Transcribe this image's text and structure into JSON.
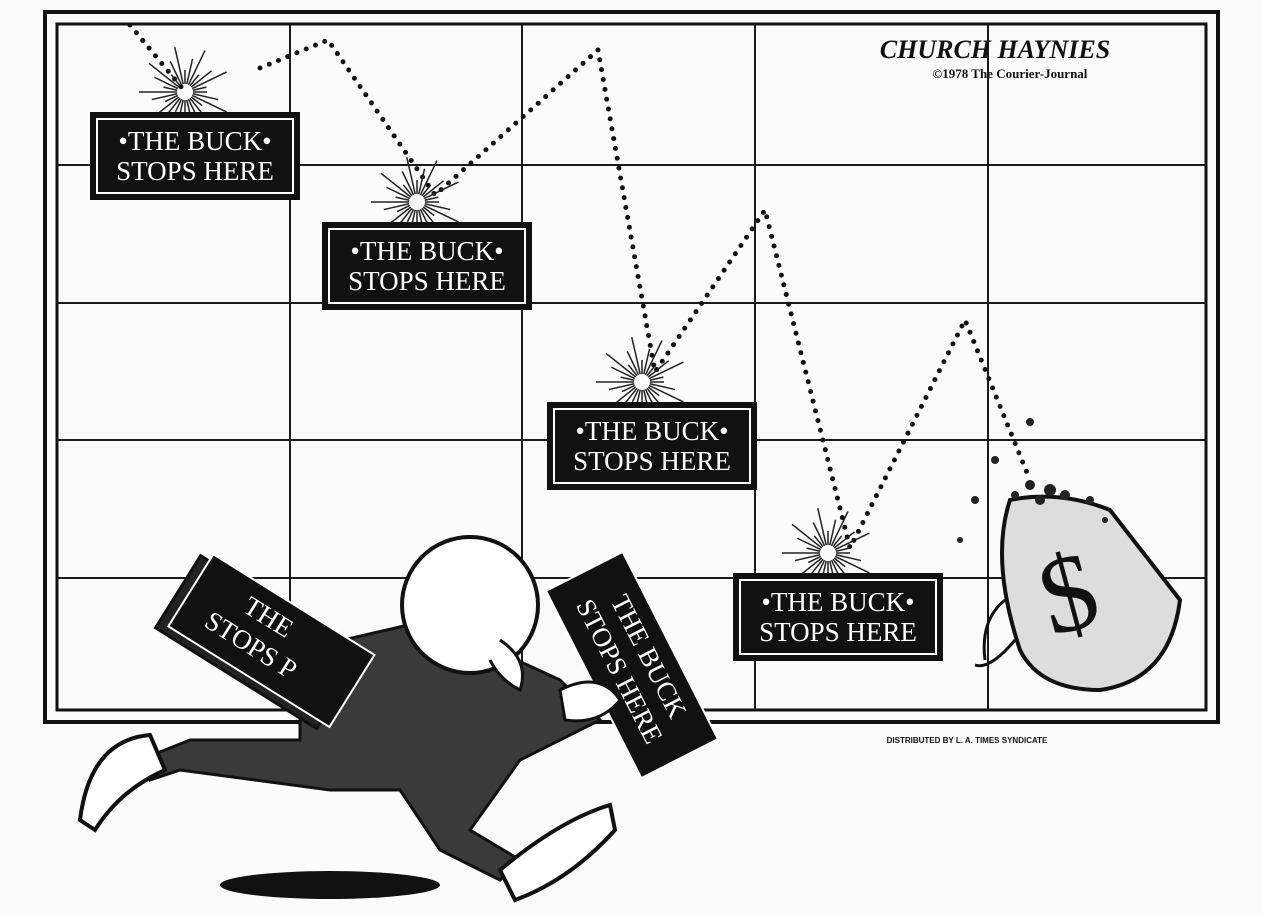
{
  "signature": {
    "artist": "CHURCH HAYNIES",
    "copyright": "©1978 The Courier-Journal"
  },
  "signs": [
    {
      "line1": "•THE BUCK•",
      "line2": "STOPS HERE"
    },
    {
      "line1": "•THE BUCK•",
      "line2": "STOPS HERE"
    },
    {
      "line1": "•THE BUCK•",
      "line2": "STOPS HERE"
    },
    {
      "line1": "•THE BUCK•",
      "line2": "STOPS HERE"
    }
  ],
  "carried_signs": [
    {
      "line1": "THE",
      "line2": "STOPS P"
    },
    {
      "line1": "THE BUCK",
      "line2": "STOPS HERE"
    }
  ],
  "credit": "DISTRIBUTED BY L. A. TIMES SYNDICATE"
}
